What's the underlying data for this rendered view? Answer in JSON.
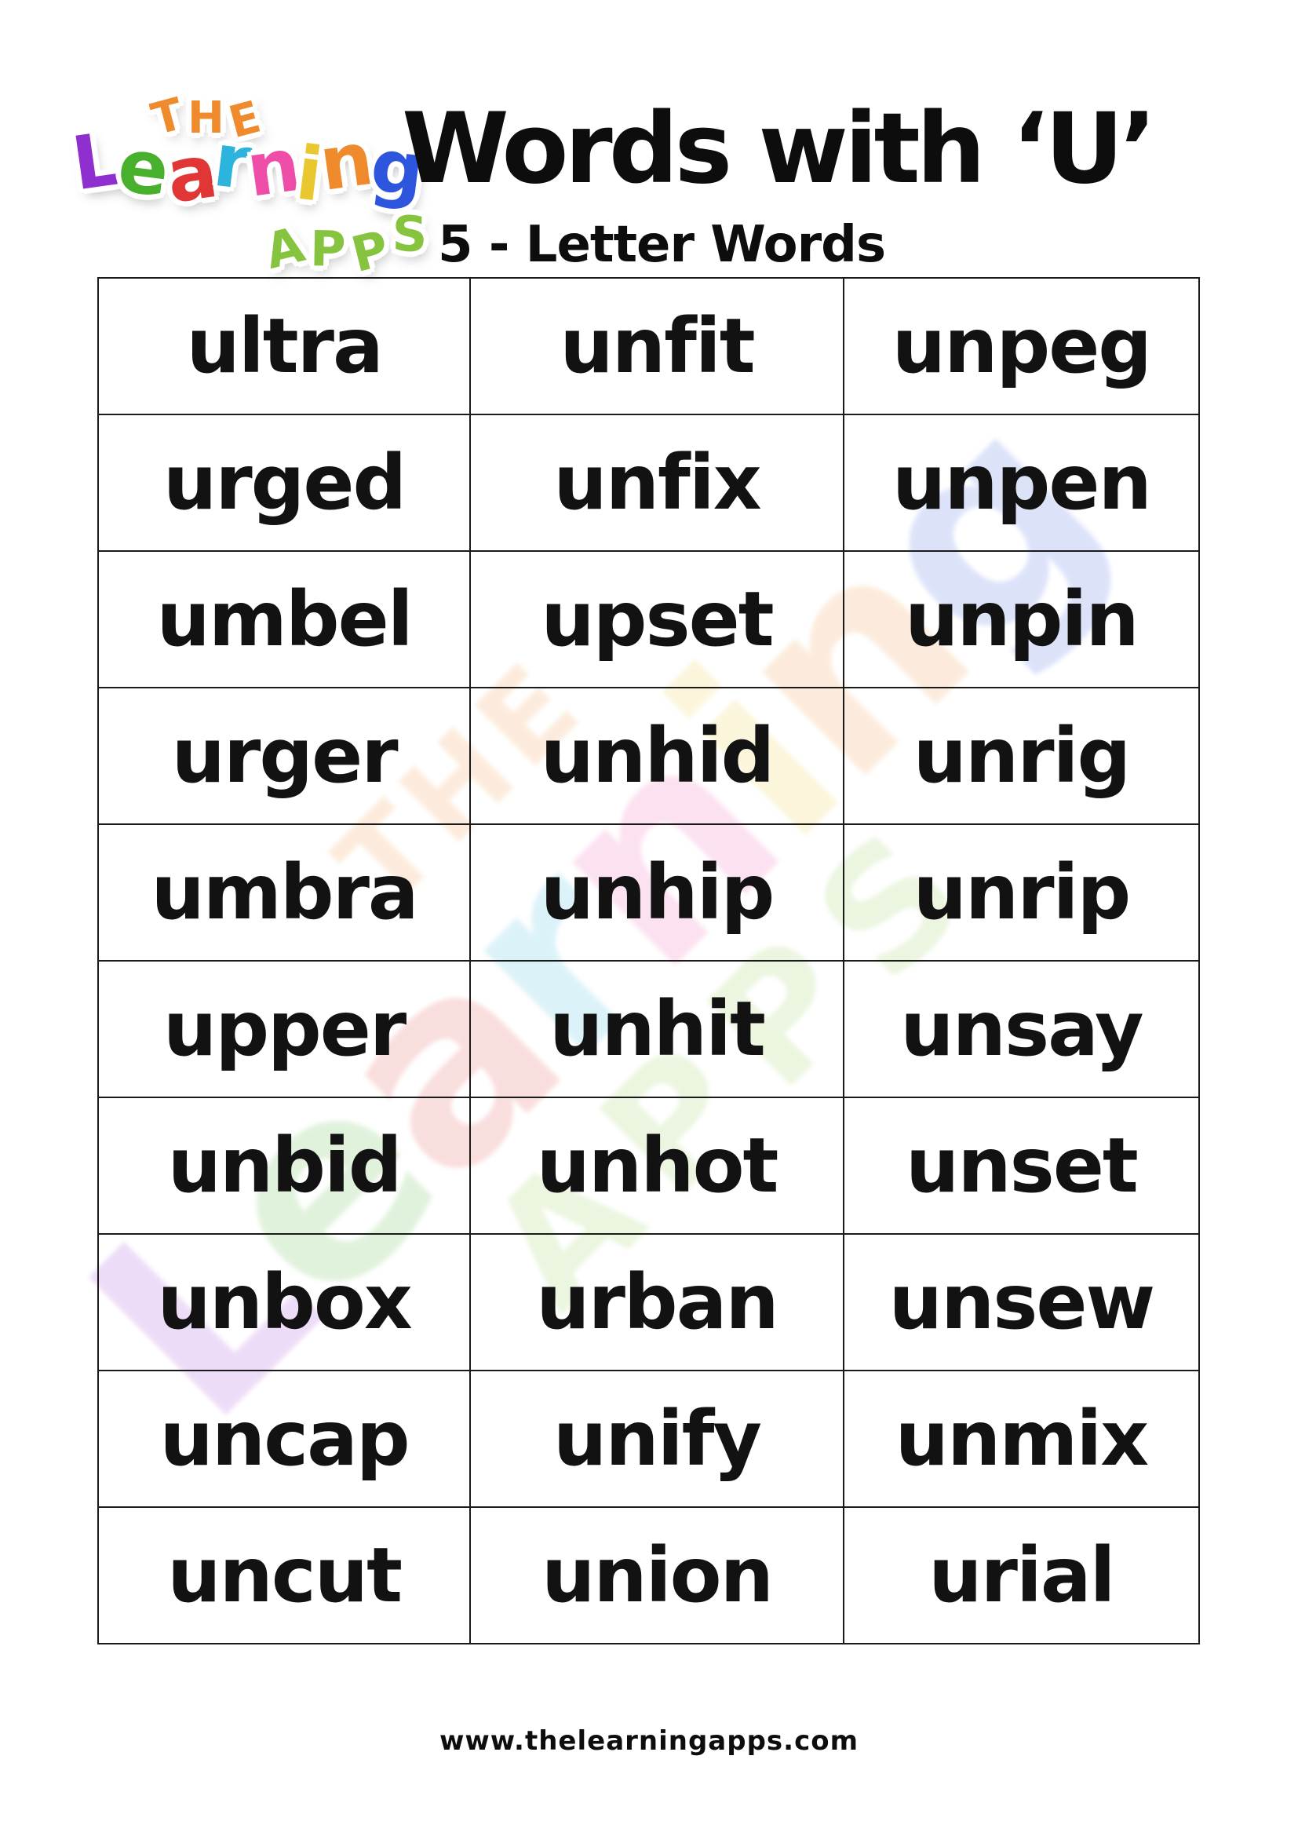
{
  "logo": {
    "line1": "THE",
    "line1_color": "#ef8b2d",
    "line2_letters": [
      {
        "ch": "L",
        "color": "#8f2fd0"
      },
      {
        "ch": "e",
        "color": "#47b02c"
      },
      {
        "ch": "a",
        "color": "#e03636"
      },
      {
        "ch": "r",
        "color": "#2cb4dc"
      },
      {
        "ch": "n",
        "color": "#ee4da8"
      },
      {
        "ch": "i",
        "color": "#e9c72e"
      },
      {
        "ch": "n",
        "color": "#ef8b2d"
      },
      {
        "ch": "g",
        "color": "#2d55dd"
      }
    ],
    "line3": "APPS",
    "line3_color": "#86c440"
  },
  "header": {
    "title": "Words with ‘U’",
    "subtitle": "5 - Letter Words"
  },
  "table": {
    "columns": 3,
    "rows": [
      [
        "ultra",
        "unfit",
        "unpeg"
      ],
      [
        "urged",
        "unfix",
        "unpen"
      ],
      [
        "umbel",
        "upset",
        "unpin"
      ],
      [
        "urger",
        "unhid",
        "unrig"
      ],
      [
        "umbra",
        "unhip",
        "unrip"
      ],
      [
        "upper",
        "unhit",
        "unsay"
      ],
      [
        "unbid",
        "unhot",
        "unset"
      ],
      [
        "unbox",
        "urban",
        "unsew"
      ],
      [
        "uncap",
        "unify",
        "unmix"
      ],
      [
        "uncut",
        "union",
        "urial"
      ]
    ]
  },
  "footer": {
    "url": "www.thelearningapps.com"
  },
  "colors": {
    "page_background": "#ffffff",
    "text": "#121212",
    "table_border": "#1a1a1a"
  }
}
